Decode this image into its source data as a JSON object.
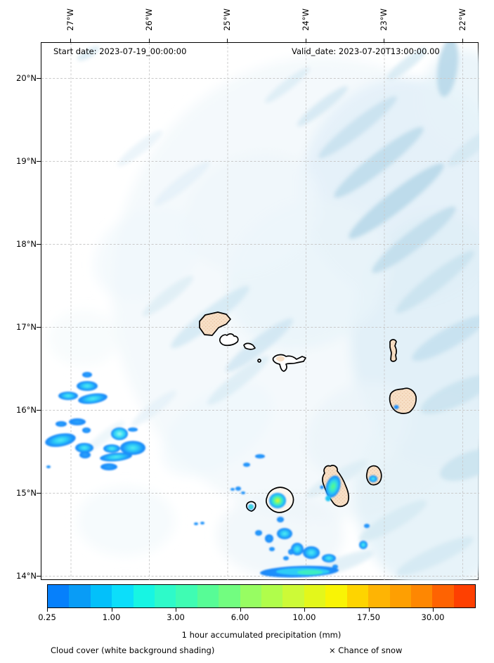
{
  "header": {
    "start_date": "Start date: 2023-07-19_00:00:00",
    "valid_date": "Valid_date: 2023-07-20T13:00:00.00"
  },
  "axes": {
    "top_labels": [
      "27°W",
      "26°W",
      "25°W",
      "24°W",
      "23°W",
      "22°W"
    ],
    "left_labels": [
      "20°N",
      "19°N",
      "18°N",
      "17°N",
      "16°N",
      "15°N",
      "14°N"
    ]
  },
  "colorbar": {
    "title": "1 hour accumulated precipitation (mm)",
    "tick_labels": [
      "0.25",
      "1.00",
      "3.00",
      "6.00",
      "10.00",
      "17.50",
      "30.00"
    ],
    "segment_colors": [
      "#0680fb",
      "#099cf6",
      "#03c0fa",
      "#0cdefa",
      "#17f5e3",
      "#2efac9",
      "#3ffcb3",
      "#57fc96",
      "#72fd80",
      "#97fd62",
      "#b0fd4b",
      "#cdfa37",
      "#e3f71b",
      "#f9f405",
      "#fed400",
      "#feb404",
      "#fe9f02",
      "#fe8702",
      "#fe6302",
      "#fe4001"
    ]
  },
  "footer": {
    "cloud_note": "Cloud cover (white background shading)",
    "snow_note": "× Chance of snow"
  },
  "map": {
    "islands": [
      "santo-antao",
      "sao-vicente",
      "santa-luzia",
      "branco-islet",
      "sao-nicolau",
      "sal",
      "boa-vista",
      "maio",
      "santiago",
      "fogo",
      "brava"
    ],
    "palette": {
      "precip_blue": "#1d8ffd",
      "precip_cyan": "#2ecdf6",
      "precip_green": "#5ef77d",
      "precip_yellow": "#f5f32b",
      "island_fill": "#f7dfc6",
      "cloud_shading": "#c2deed",
      "gridline": "#c9c9c9"
    }
  }
}
